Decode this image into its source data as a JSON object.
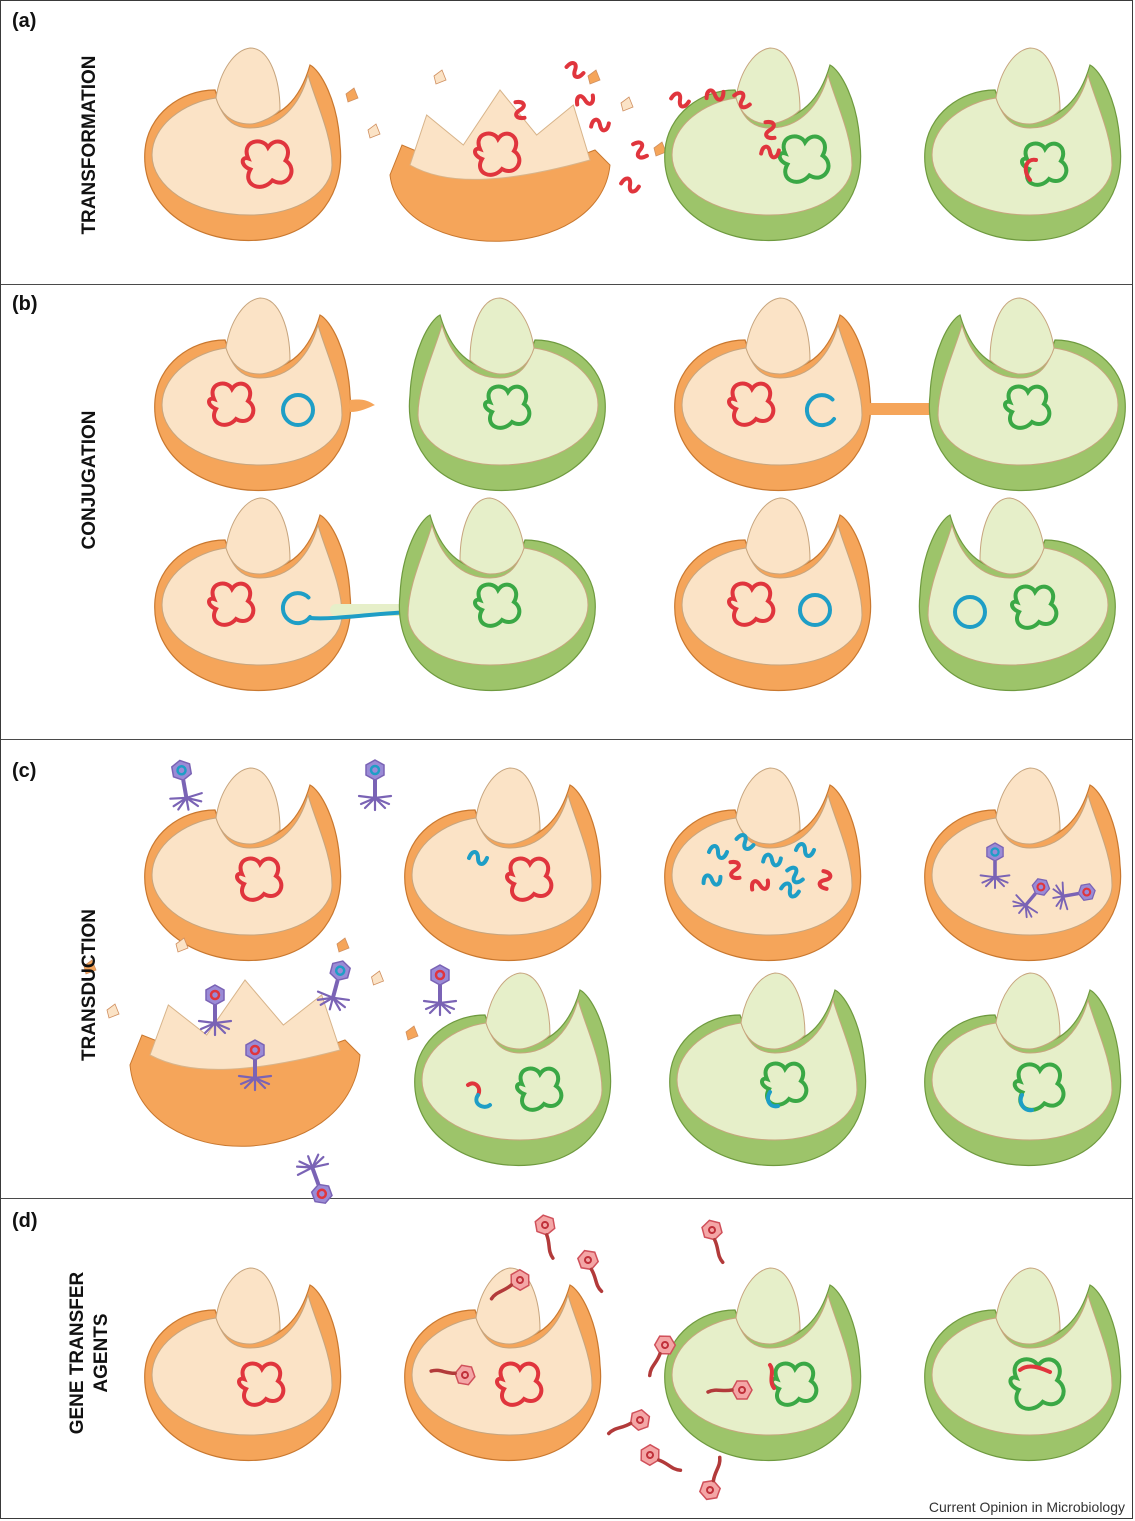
{
  "panels": [
    {
      "label": "(a)",
      "title": "TRANSFORMATION"
    },
    {
      "label": "(b)",
      "title": "CONJUGATION"
    },
    {
      "label": "(c)",
      "title": "TRANSDUCTION"
    },
    {
      "label": "(d)",
      "title_line1": "GENE TRANSFER",
      "title_line2": "AGENTS"
    }
  ],
  "credit": "Current Opinion in Microbiology",
  "colors": {
    "donor_cell": "#f5a55a",
    "donor_inner": "#fbe3c6",
    "recipient_cell": "#9dc46a",
    "recipient_inner": "#e6efc9",
    "donor_dna": "#e0353d",
    "recipient_dna": "#3aa845",
    "plasmid": "#1e9ec6",
    "phage": "#7a63b5"
  }
}
